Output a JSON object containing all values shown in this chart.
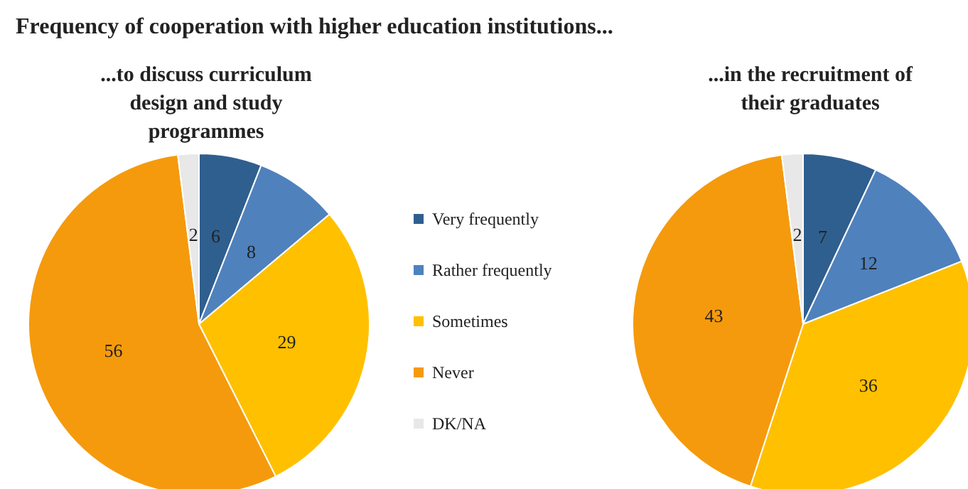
{
  "chart_data": {
    "type": "pie",
    "title": "Frequency of cooperation with higher education institutions...",
    "categories": [
      "Very frequently",
      "Rather frequently",
      "Sometimes",
      "Never",
      "DK/NA"
    ],
    "colors": [
      "#2f5f8f",
      "#4f81bd",
      "#ffc000",
      "#f59a0c",
      "#e8e8e8"
    ],
    "data_labels": true,
    "legend": "right",
    "series": [
      {
        "name": "...to discuss curriculum\ndesign and study\nprogrammes",
        "values": [
          6,
          8,
          29,
          56,
          2
        ]
      },
      {
        "name": "...in the recruitment of\ntheir graduates",
        "values": [
          7,
          12,
          36,
          43,
          2
        ]
      }
    ]
  }
}
